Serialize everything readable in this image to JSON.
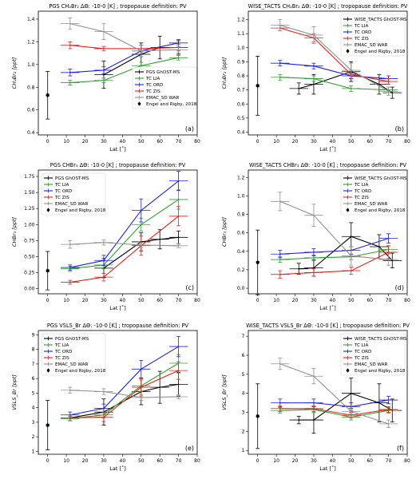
{
  "colors": {
    "GhOST": "#000000",
    "LIA": "#2ca02c",
    "ORD": "#1f1fe6",
    "ZIS": "#e6201c",
    "WAR": "#909090",
    "Engel": "#000000"
  },
  "chart_data": [
    {
      "type": "line",
      "letter": "(a)",
      "title": "PGS CH₂Br₂ ΔΘ: -10-0 [K] ; tropopause definition: PV",
      "xlabel": "Lat [˚]",
      "ylabel": "CH₂Br₂ [ppt]",
      "xlim": [
        -5,
        80
      ],
      "ylim": [
        0.38,
        1.47
      ],
      "xticks": [
        0,
        10,
        20,
        30,
        40,
        50,
        60,
        70,
        80
      ],
      "yticks": [
        0.4,
        0.6,
        0.8,
        1.0,
        1.2,
        1.4
      ],
      "ytick_labels": [
        "0.4",
        "0.6",
        "0.8",
        "1.0",
        "1.2",
        "1.4"
      ],
      "legend_position": "center-right",
      "series": [
        {
          "name": "PGS GhOST-MS",
          "key": "GhOST",
          "x": [
            30,
            50,
            60,
            70
          ],
          "y": [
            0.91,
            1.09,
            1.15,
            1.15
          ],
          "err": [
            0.12,
            0.1,
            0.1,
            0.06
          ]
        },
        {
          "name": "TC LIA",
          "key": "LIA",
          "x": [
            12,
            30,
            50,
            70
          ],
          "y": [
            0.84,
            0.86,
            0.99,
            1.06
          ],
          "err": [
            0.02,
            0.02,
            0.03,
            0.02
          ]
        },
        {
          "name": "TC ORD",
          "key": "ORD",
          "x": [
            12,
            30,
            50,
            70
          ],
          "y": [
            0.93,
            0.95,
            1.12,
            1.19
          ],
          "err": [
            0.03,
            0.03,
            0.05,
            0.03
          ]
        },
        {
          "name": "TC ZIS",
          "key": "ZIS",
          "x": [
            12,
            30,
            50,
            70
          ],
          "y": [
            1.17,
            1.14,
            1.14,
            1.15
          ],
          "err": [
            0.03,
            0.02,
            0.03,
            0.03
          ]
        },
        {
          "name": "EMAC_SD WAR",
          "key": "WAR",
          "x": [
            12,
            30,
            50,
            70
          ],
          "y": [
            1.36,
            1.29,
            1.12,
            1.13
          ],
          "err": [
            0.05,
            0.07,
            0.05,
            0.03
          ]
        }
      ],
      "reference": {
        "name": "Engel and Rigby, 2018",
        "x": 0,
        "y": 0.73,
        "err": 0.21
      }
    },
    {
      "type": "line",
      "letter": "(b)",
      "title": "WISE_TACTS CH₂Br₂ ΔΘ: -10-0 [K] ; tropopause definition: PV",
      "xlabel": "Lat [˚]",
      "ylabel": "CH₂Br₂ [ppt]",
      "xlim": [
        -5,
        80
      ],
      "ylim": [
        0.38,
        1.26
      ],
      "xticks": [
        0,
        10,
        20,
        30,
        40,
        50,
        60,
        70,
        80
      ],
      "yticks": [
        0.4,
        0.5,
        0.6,
        0.7,
        0.8,
        0.9,
        1.0,
        1.1,
        1.2
      ],
      "ytick_labels": [
        "0.4",
        "0.5",
        "0.6",
        "0.7",
        "0.8",
        "0.9",
        "1.0",
        "1.1",
        "1.2"
      ],
      "legend_position": "top-right",
      "series": [
        {
          "name": "WISE_TACTS GhOST-MS",
          "key": "GhOST",
          "x": [
            22,
            30,
            50,
            65,
            72
          ],
          "y": [
            0.71,
            0.74,
            0.83,
            0.74,
            0.68
          ],
          "err": [
            0.04,
            0.07,
            0.07,
            0.07,
            0.04
          ]
        },
        {
          "name": "TC LIA",
          "key": "LIA",
          "x": [
            12,
            30,
            50,
            70
          ],
          "y": [
            0.79,
            0.78,
            0.71,
            0.7
          ],
          "err": [
            0.02,
            0.02,
            0.02,
            0.02
          ]
        },
        {
          "name": "TC ORD",
          "key": "ORD",
          "x": [
            12,
            30,
            50,
            70
          ],
          "y": [
            0.89,
            0.87,
            0.8,
            0.78
          ],
          "err": [
            0.02,
            0.02,
            0.02,
            0.02
          ]
        },
        {
          "name": "TC ZIS",
          "key": "ZIS",
          "x": [
            12,
            30,
            50,
            70
          ],
          "y": [
            1.14,
            1.07,
            0.81,
            0.76
          ],
          "err": [
            0.02,
            0.03,
            0.03,
            0.02
          ]
        },
        {
          "name": "EMAC_SD WAR",
          "key": "WAR",
          "x": [
            12,
            30,
            50,
            70
          ],
          "y": [
            1.16,
            1.09,
            0.84,
            0.69
          ],
          "err": [
            0.04,
            0.06,
            0.05,
            0.03
          ]
        }
      ],
      "reference": {
        "name": "Engel and Rigby, 2018",
        "x": 0,
        "y": 0.73,
        "err": 0.21
      }
    },
    {
      "type": "line",
      "letter": "(c)",
      "title": "PGS CHBr₃ ΔΘ: -10-0 [K] ; tropopause definition: PV",
      "xlabel": "Lat [˚]",
      "ylabel": "CHBr₃ [ppt]",
      "xlim": [
        -5,
        80
      ],
      "ylim": [
        -0.08,
        1.85
      ],
      "xticks": [
        0,
        10,
        20,
        30,
        40,
        50,
        60,
        70,
        80
      ],
      "yticks": [
        0.0,
        0.25,
        0.5,
        0.75,
        1.0,
        1.25,
        1.5,
        1.75
      ],
      "ytick_labels": [
        "0.00",
        "0.25",
        "0.50",
        "0.75",
        "1.00",
        "1.25",
        "1.50",
        "1.75"
      ],
      "legend_position": "top-left",
      "series": [
        {
          "name": "PGS GhOST-MS",
          "key": "GhOST",
          "x": [
            30,
            50,
            60,
            70
          ],
          "y": [
            0.32,
            0.73,
            0.77,
            0.8
          ],
          "err": [
            0.15,
            0.14,
            0.15,
            0.1
          ]
        },
        {
          "name": "TC LIA",
          "key": "LIA",
          "x": [
            12,
            30,
            50,
            70
          ],
          "y": [
            0.31,
            0.37,
            1.0,
            1.39
          ],
          "err": [
            0.04,
            0.06,
            0.1,
            0.15
          ]
        },
        {
          "name": "TC ORD",
          "key": "ORD",
          "x": [
            12,
            30,
            50,
            70
          ],
          "y": [
            0.33,
            0.44,
            1.22,
            1.68
          ],
          "err": [
            0.04,
            0.08,
            0.18,
            0.15
          ]
        },
        {
          "name": "TC ZIS",
          "key": "ZIS",
          "x": [
            12,
            30,
            50,
            70
          ],
          "y": [
            0.1,
            0.18,
            0.67,
            1.13
          ],
          "err": [
            0.03,
            0.06,
            0.15,
            0.15
          ]
        },
        {
          "name": "EMAC_SD WAR",
          "key": "WAR",
          "x": [
            12,
            30,
            50,
            70
          ],
          "y": [
            0.69,
            0.72,
            0.68,
            0.67
          ],
          "err": [
            0.06,
            0.04,
            0.04,
            0.03
          ]
        }
      ],
      "reference": {
        "name": "Engel and Rigby, 2018",
        "x": 0,
        "y": 0.28,
        "err": 0.3
      }
    },
    {
      "type": "line",
      "letter": "(d)",
      "title": "WISE_TACTS CHBr₃ ΔΘ: -10-0 [K] ; tropopause definition: PV",
      "xlabel": "Lat [˚]",
      "ylabel": "CHBr₃ [ppt]",
      "xlim": [
        -5,
        80
      ],
      "ylim": [
        -0.06,
        1.28
      ],
      "xticks": [
        0,
        10,
        20,
        30,
        40,
        50,
        60,
        70,
        80
      ],
      "yticks": [
        0.0,
        0.2,
        0.4,
        0.6,
        0.8,
        1.0,
        1.2
      ],
      "ytick_labels": [
        "0.0",
        "0.2",
        "0.4",
        "0.6",
        "0.8",
        "1.0",
        "1.2"
      ],
      "legend_position": "top-right",
      "series": [
        {
          "name": "WISE_TACTS GhOST-MS",
          "key": "GhOST",
          "x": [
            22,
            30,
            50,
            65,
            72
          ],
          "y": [
            0.21,
            0.22,
            0.56,
            0.45,
            0.3
          ],
          "err": [
            0.06,
            0.09,
            0.15,
            0.13,
            0.08
          ]
        },
        {
          "name": "TC LIA",
          "key": "LIA",
          "x": [
            12,
            30,
            50,
            70
          ],
          "y": [
            0.31,
            0.33,
            0.34,
            0.42
          ],
          "err": [
            0.03,
            0.03,
            0.03,
            0.04
          ]
        },
        {
          "name": "TC ORD",
          "key": "ORD",
          "x": [
            12,
            30,
            50,
            70
          ],
          "y": [
            0.37,
            0.39,
            0.41,
            0.54
          ],
          "err": [
            0.04,
            0.04,
            0.04,
            0.05
          ]
        },
        {
          "name": "TC ZIS",
          "key": "ZIS",
          "x": [
            12,
            30,
            50,
            70
          ],
          "y": [
            0.15,
            0.17,
            0.19,
            0.39
          ],
          "err": [
            0.04,
            0.04,
            0.04,
            0.07
          ]
        },
        {
          "name": "EMAC_SD WAR",
          "key": "WAR",
          "x": [
            12,
            30,
            50,
            70
          ],
          "y": [
            0.94,
            0.79,
            0.35,
            0.31
          ],
          "err": [
            0.1,
            0.12,
            0.1,
            0.06
          ]
        }
      ],
      "reference": {
        "name": "Engel and Rigby, 2018",
        "x": 0,
        "y": 0.28,
        "err": 0.35
      }
    },
    {
      "type": "line",
      "letter": "(e)",
      "title": "PGS VSLS_Br ΔΘ: -10-0 [K] ; tropopause definition: PV",
      "xlabel": "Lat [˚]",
      "ylabel": "VSLS_Br [ppt]",
      "xlim": [
        -5,
        80
      ],
      "ylim": [
        0.8,
        9.3
      ],
      "xticks": [
        0,
        10,
        20,
        30,
        40,
        50,
        60,
        70,
        80
      ],
      "yticks": [
        1,
        2,
        3,
        4,
        5,
        6,
        7,
        8,
        9
      ],
      "ytick_labels": [
        "1",
        "2",
        "3",
        "4",
        "5",
        "6",
        "7",
        "8",
        "9"
      ],
      "legend_position": "top-left",
      "series": [
        {
          "name": "PGS GhOST-MS",
          "key": "GhOST",
          "x": [
            12,
            30,
            50,
            60,
            70
          ],
          "y": [
            3.3,
            3.7,
            5.1,
            5.4,
            5.6
          ],
          "err": [
            0.2,
            0.9,
            0.9,
            1.1,
            0.8
          ]
        },
        {
          "name": "TC LIA",
          "key": "LIA",
          "x": [
            12,
            30,
            50,
            70
          ],
          "y": [
            3.25,
            3.5,
            5.5,
            7.05
          ],
          "err": [
            0.15,
            0.2,
            0.4,
            0.6
          ]
        },
        {
          "name": "TC ORD",
          "key": "ORD",
          "x": [
            12,
            30,
            50,
            70
          ],
          "y": [
            3.5,
            3.95,
            6.65,
            8.2
          ],
          "err": [
            0.2,
            0.3,
            0.6,
            0.7
          ]
        },
        {
          "name": "TC ZIS",
          "key": "ZIS",
          "x": [
            12,
            30,
            50,
            70
          ],
          "y": [
            3.3,
            3.35,
            5.4,
            6.55
          ],
          "err": [
            0.2,
            0.3,
            0.6,
            0.6
          ]
        },
        {
          "name": "EMAC_SD WAR",
          "key": "WAR",
          "x": [
            12,
            30,
            50,
            70
          ],
          "y": [
            5.2,
            5.1,
            4.7,
            4.75
          ],
          "err": [
            0.2,
            0.2,
            0.2,
            0.15
          ]
        }
      ],
      "reference": {
        "name": "Engel and Rigby, 2018",
        "x": 0,
        "y": 2.8,
        "err": 1.7
      }
    },
    {
      "type": "line",
      "letter": "(f)",
      "title": "WISE_TACTS VSLS_Br ΔΘ: -10-0 [K] ; tropopause definition: PV",
      "xlabel": "Lat [˚]",
      "ylabel": "VSLS_Br [ppt]",
      "xlim": [
        -5,
        80
      ],
      "ylim": [
        0.8,
        7.3
      ],
      "xticks": [
        0,
        10,
        20,
        30,
        40,
        50,
        60,
        70,
        80
      ],
      "yticks": [
        1,
        2,
        3,
        4,
        5,
        6,
        7
      ],
      "ytick_labels": [
        "1",
        "2",
        "3",
        "4",
        "5",
        "6",
        "7"
      ],
      "legend_position": "top-right",
      "series": [
        {
          "name": "WISE_TACTS GhOST-MS",
          "key": "GhOST",
          "x": [
            22,
            30,
            50,
            65,
            72
          ],
          "y": [
            2.6,
            2.6,
            4.0,
            3.5,
            3.1
          ],
          "err": [
            0.2,
            0.7,
            0.8,
            1.0,
            0.6
          ]
        },
        {
          "name": "TC LIA",
          "key": "LIA",
          "x": [
            12,
            30,
            50,
            70
          ],
          "y": [
            3.1,
            3.15,
            2.75,
            3.1
          ],
          "err": [
            0.15,
            0.15,
            0.15,
            0.15
          ]
        },
        {
          "name": "TC ORD",
          "key": "ORD",
          "x": [
            12,
            30,
            50,
            70
          ],
          "y": [
            3.5,
            3.5,
            3.3,
            3.65
          ],
          "err": [
            0.2,
            0.2,
            0.2,
            0.2
          ]
        },
        {
          "name": "TC ZIS",
          "key": "ZIS",
          "x": [
            12,
            30,
            50,
            70
          ],
          "y": [
            3.2,
            3.2,
            2.85,
            3.15
          ],
          "err": [
            0.15,
            0.15,
            0.15,
            0.15
          ]
        },
        {
          "name": "EMAC_SD WAR",
          "key": "WAR",
          "x": [
            12,
            30,
            50,
            70
          ],
          "y": [
            5.55,
            4.9,
            3.05,
            2.4
          ],
          "err": [
            0.3,
            0.4,
            0.3,
            0.2
          ]
        }
      ],
      "reference": {
        "name": "Engel and Rigby, 2018",
        "x": 0,
        "y": 2.8,
        "err": 1.7
      }
    }
  ]
}
